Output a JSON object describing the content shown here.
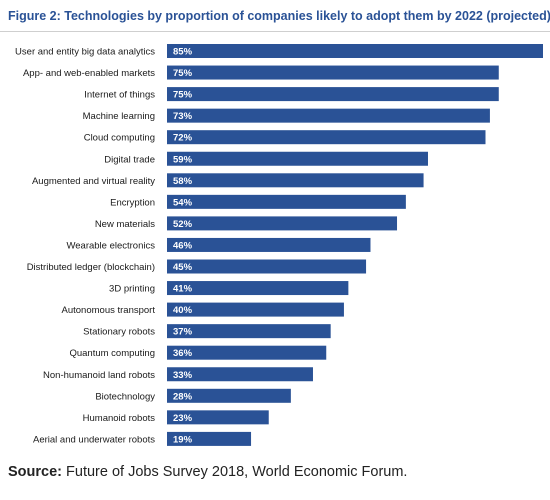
{
  "figure": {
    "title": "Figure 2: Technologies by proportion of companies likely to adopt them by 2022 (projected)",
    "source_label": "Source:",
    "source_text": "Future of Jobs Survey 2018, World Economic Forum."
  },
  "colors": {
    "bar": "#2a5296",
    "title": "#2a5296",
    "bar_label": "#ffffff",
    "category_text": "#1a1a1a"
  },
  "chart_data": {
    "type": "bar",
    "orientation": "horizontal",
    "title": "Figure 2: Technologies by proportion of companies likely to adopt them by 2022 (projected)",
    "categories": [
      "User and entity big data analytics",
      "App- and web-enabled markets",
      "Internet of things",
      "Machine learning",
      "Cloud computing",
      "Digital trade",
      "Augmented and virtual reality",
      "Encryption",
      "New materials",
      "Wearable electronics",
      "Distributed ledger (blockchain)",
      "3D printing",
      "Autonomous transport",
      "Stationary robots",
      "Quantum computing",
      "Non-humanoid land robots",
      "Biotechnology",
      "Humanoid robots",
      "Aerial and underwater robots"
    ],
    "values": [
      85,
      75,
      75,
      73,
      72,
      59,
      58,
      54,
      52,
      46,
      45,
      41,
      40,
      37,
      36,
      33,
      28,
      23,
      19
    ],
    "value_suffix": "%",
    "xlim": [
      0,
      85
    ],
    "grid": false,
    "legend": "none"
  }
}
